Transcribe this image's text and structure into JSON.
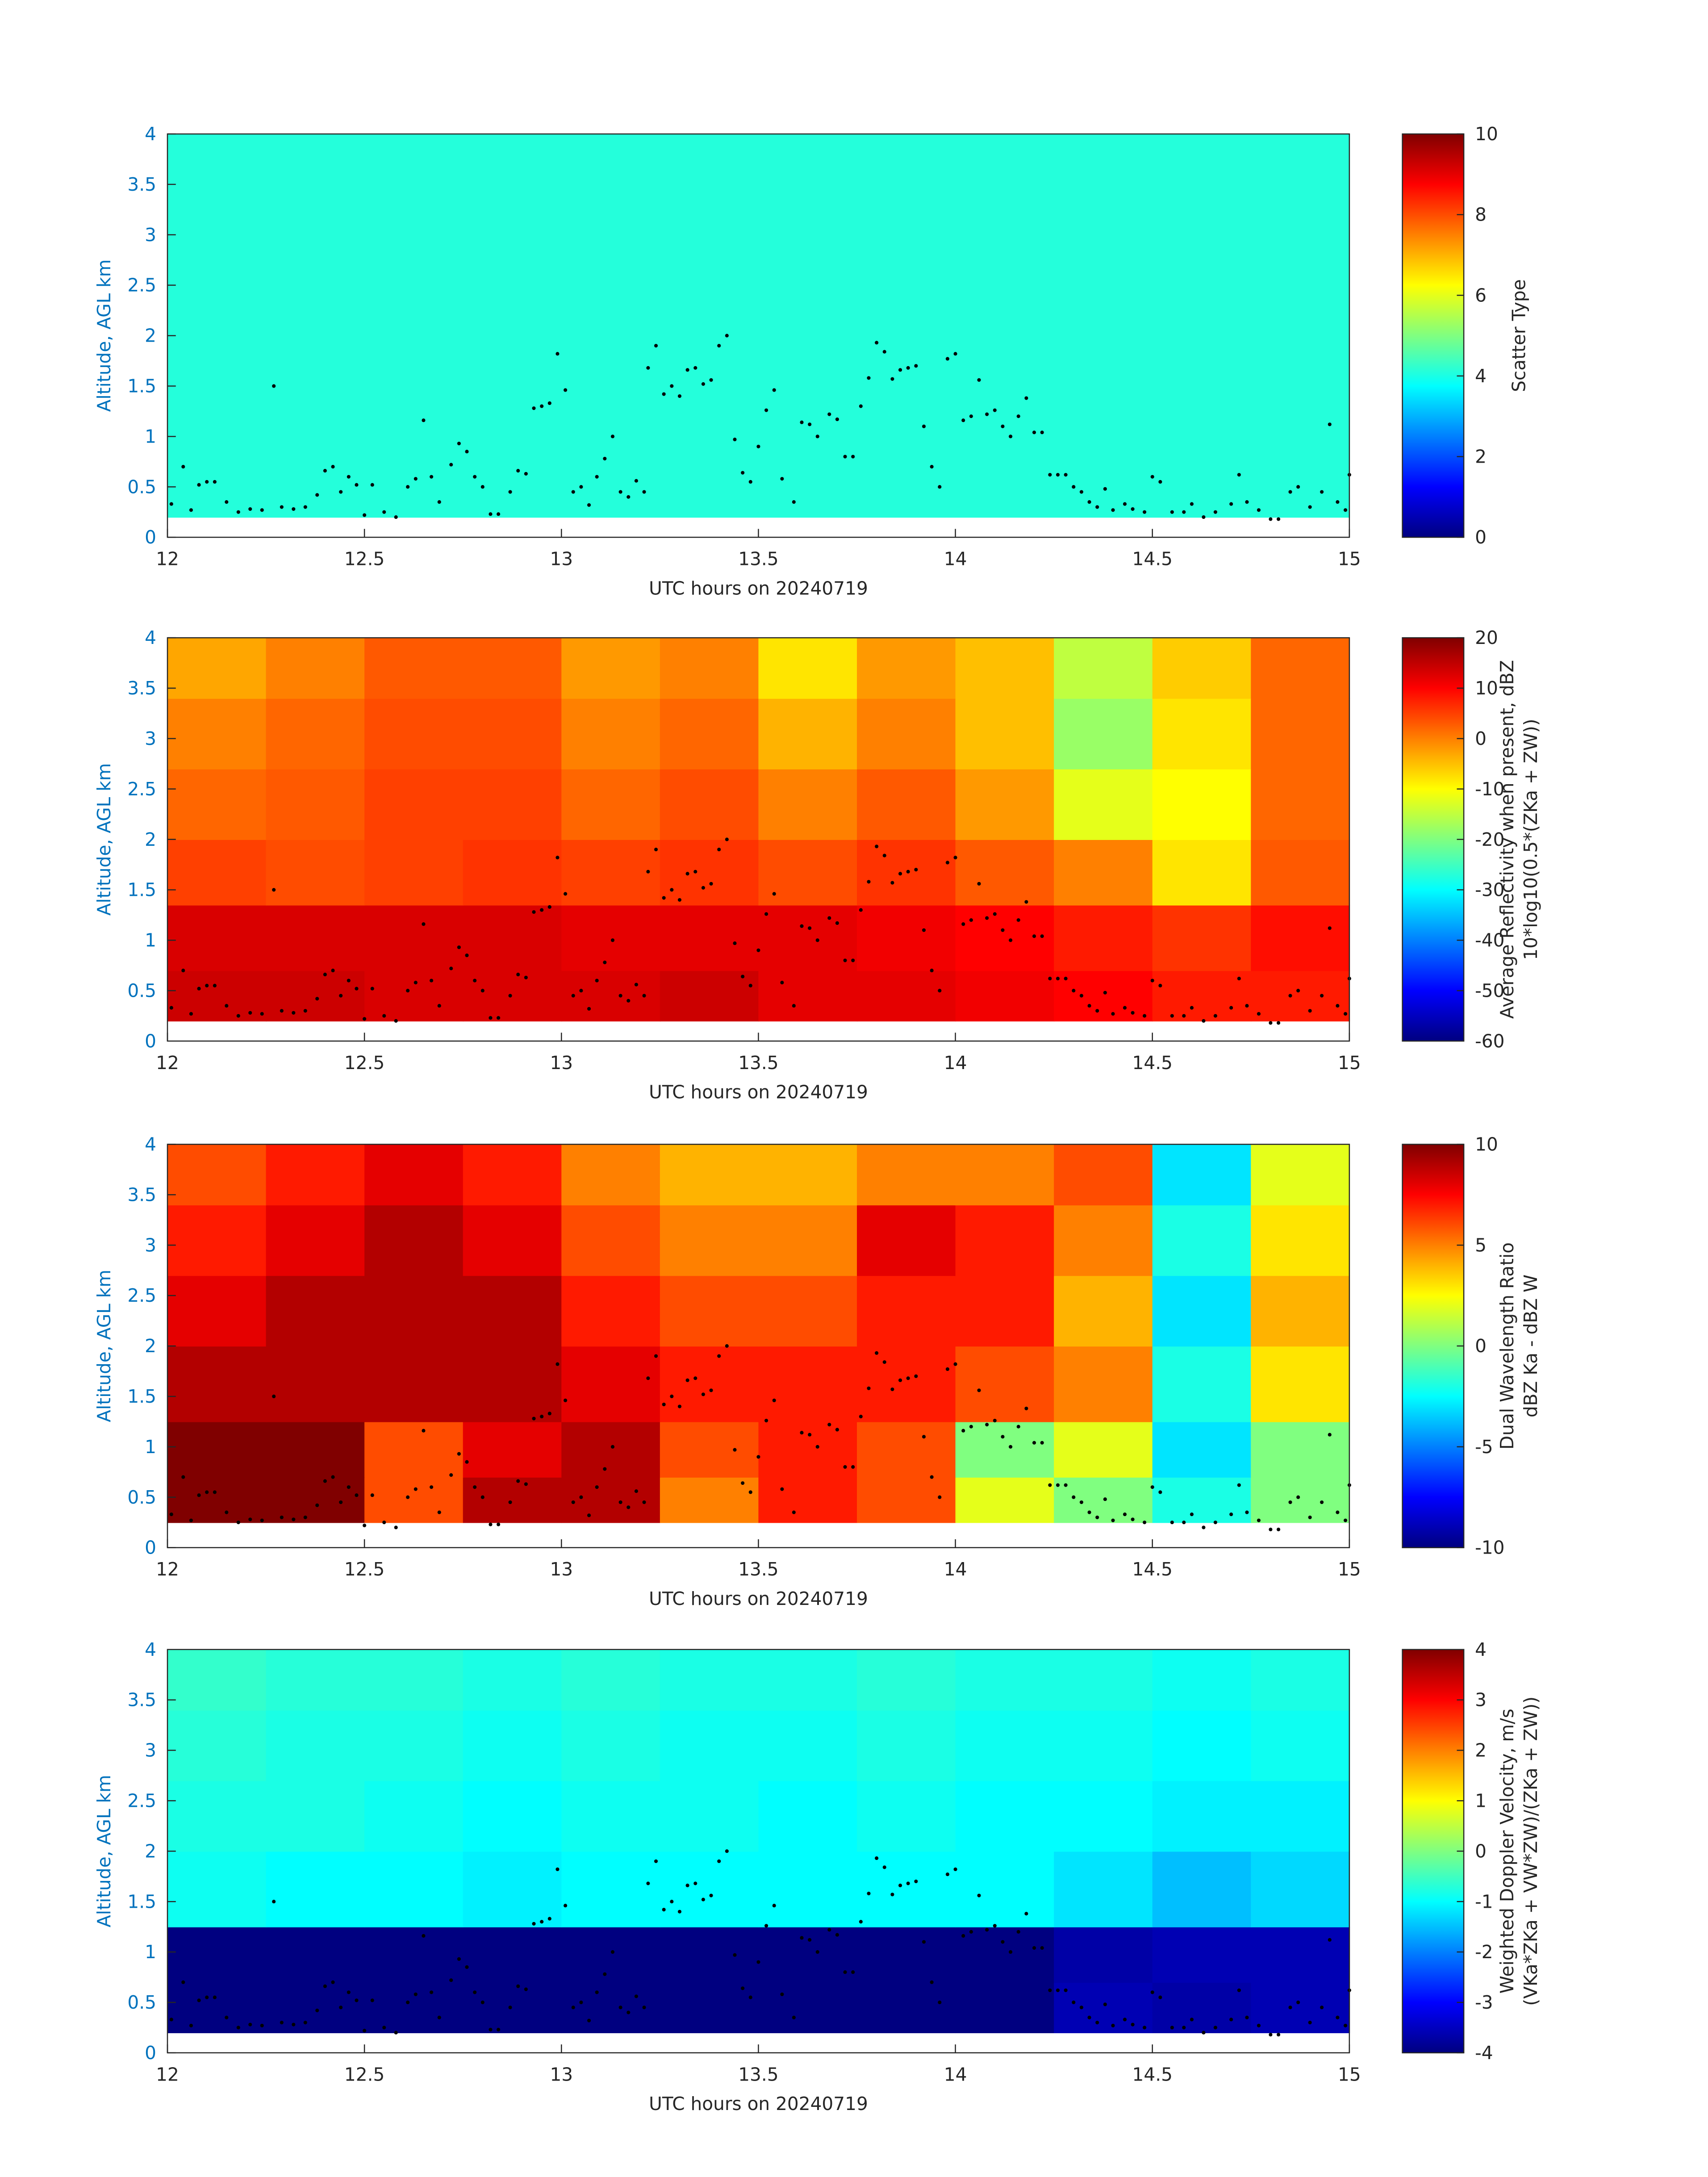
{
  "chart_data": [
    {
      "type": "heatmap",
      "xlabel": "UTC hours on 20240719",
      "ylabel": "Altitude, AGL km",
      "axis_color": "#0072bd",
      "colormap": "jet",
      "xlim": [
        12,
        15
      ],
      "xticks": [
        12,
        12.5,
        13,
        13.5,
        14,
        14.5,
        15
      ],
      "ylim": [
        0,
        4
      ],
      "yticks": [
        0,
        0.5,
        1,
        1.5,
        2,
        2.5,
        3,
        3.5,
        4
      ],
      "xbins": [
        12,
        15
      ],
      "ybins": [
        0.2,
        4
      ],
      "z": [
        [
          4.1
        ]
      ],
      "clim": [
        0,
        10
      ],
      "cticks": [
        0,
        2,
        4,
        6,
        8,
        10
      ],
      "colorbar_label": [
        "Scatter Type"
      ],
      "points": {
        "color": "#000000",
        "x": [
          12.01,
          12.04,
          12.06,
          12.08,
          12.1,
          12.12,
          12.15,
          12.18,
          12.21,
          12.24,
          12.27,
          12.29,
          12.32,
          12.35,
          12.38,
          12.4,
          12.42,
          12.44,
          12.46,
          12.48,
          12.5,
          12.52,
          12.55,
          12.58,
          12.61,
          12.63,
          12.65,
          12.67,
          12.69,
          12.72,
          12.74,
          12.76,
          12.78,
          12.8,
          12.82,
          12.84,
          12.87,
          12.89,
          12.91,
          12.93,
          12.95,
          12.97,
          12.99,
          13.01,
          13.03,
          13.05,
          13.07,
          13.09,
          13.11,
          13.13,
          13.15,
          13.17,
          13.19,
          13.21,
          13.22,
          13.24,
          13.26,
          13.28,
          13.3,
          13.32,
          13.34,
          13.36,
          13.38,
          13.4,
          13.42,
          13.44,
          13.46,
          13.48,
          13.5,
          13.52,
          13.54,
          13.56,
          13.59,
          13.61,
          13.63,
          13.65,
          13.68,
          13.7,
          13.72,
          13.74,
          13.76,
          13.78,
          13.8,
          13.82,
          13.84,
          13.86,
          13.88,
          13.9,
          13.92,
          13.94,
          13.96,
          13.98,
          14,
          14.02,
          14.04,
          14.06,
          14.08,
          14.1,
          14.12,
          14.14,
          14.16,
          14.18,
          14.2,
          14.22,
          14.24,
          14.26,
          14.28,
          14.3,
          14.32,
          14.34,
          14.36,
          14.38,
          14.4,
          14.43,
          14.45,
          14.48,
          14.5,
          14.52,
          14.55,
          14.58,
          14.6,
          14.63,
          14.66,
          14.7,
          14.72,
          14.74,
          14.77,
          14.8,
          14.82,
          14.85,
          14.87,
          14.9,
          14.93,
          14.95,
          14.97,
          14.99,
          15
        ],
        "y": [
          0.33,
          0.7,
          0.27,
          0.52,
          0.55,
          0.55,
          0.35,
          0.25,
          0.28,
          0.27,
          1.5,
          0.3,
          0.28,
          0.3,
          0.42,
          0.66,
          0.7,
          0.45,
          0.6,
          0.52,
          0.22,
          0.52,
          0.25,
          0.2,
          0.5,
          0.58,
          1.16,
          0.6,
          0.35,
          0.72,
          0.93,
          0.85,
          0.6,
          0.5,
          0.23,
          0.23,
          0.45,
          0.66,
          0.63,
          1.28,
          1.3,
          1.33,
          1.82,
          1.46,
          0.45,
          0.5,
          0.32,
          0.6,
          0.78,
          1,
          0.45,
          0.4,
          0.56,
          0.45,
          1.68,
          1.9,
          1.42,
          1.5,
          1.4,
          1.66,
          1.68,
          1.52,
          1.56,
          1.9,
          2,
          0.97,
          0.64,
          0.55,
          0.9,
          1.26,
          1.46,
          0.58,
          0.35,
          1.14,
          1.12,
          1,
          1.22,
          1.17,
          0.8,
          0.8,
          1.3,
          1.58,
          1.93,
          1.84,
          1.57,
          1.66,
          1.68,
          1.7,
          1.1,
          0.7,
          0.5,
          1.77,
          1.82,
          1.16,
          1.2,
          1.56,
          1.22,
          1.26,
          1.1,
          1,
          1.2,
          1.38,
          1.04,
          1.04,
          0.62,
          0.62,
          0.62,
          0.5,
          0.45,
          0.35,
          0.3,
          0.48,
          0.27,
          0.33,
          0.28,
          0.25,
          0.6,
          0.55,
          0.25,
          0.25,
          0.33,
          0.2,
          0.25,
          0.33,
          0.62,
          0.35,
          0.27,
          0.18,
          0.18,
          0.45,
          0.5,
          0.3,
          0.45,
          1.12,
          0.35,
          0.27,
          0.62
        ]
      }
    },
    {
      "type": "heatmap",
      "xlabel": "UTC hours on 20240719",
      "ylabel": "Altitude, AGL km",
      "axis_color": "#0072bd",
      "colormap": "jet",
      "xlim": [
        12,
        15
      ],
      "xticks": [
        12,
        12.5,
        13,
        13.5,
        14,
        14.5,
        15
      ],
      "ylim": [
        0,
        4
      ],
      "yticks": [
        0,
        0.5,
        1,
        1.5,
        2,
        2.5,
        3,
        3.5,
        4
      ],
      "xbins": [
        12,
        12.25,
        12.5,
        12.75,
        13,
        13.25,
        13.5,
        13.75,
        14,
        14.25,
        14.5,
        14.75,
        15
      ],
      "ybins": [
        0.2,
        0.7,
        1.35,
        2,
        2.7,
        3.4,
        4
      ],
      "z": [
        [
          14,
          14,
          13,
          13,
          13,
          14,
          12,
          12,
          11,
          10,
          8,
          8
        ],
        [
          13,
          13,
          13,
          13,
          12,
          12,
          12,
          11,
          10,
          8,
          6,
          9
        ],
        [
          5,
          4,
          5,
          6,
          5,
          6,
          4,
          6,
          3,
          0,
          -8,
          3
        ],
        [
          2,
          3,
          5,
          5,
          2,
          4,
          0,
          3,
          -2,
          -12,
          -10,
          2
        ],
        [
          0,
          2,
          4,
          4,
          0,
          2,
          -4,
          0,
          -5,
          -18,
          -8,
          2
        ],
        [
          -3,
          0,
          3,
          3,
          -2,
          0,
          -8,
          -2,
          -5,
          -15,
          -6,
          2
        ]
      ],
      "clim": [
        -60,
        20
      ],
      "cticks": [
        -60,
        -50,
        -40,
        -30,
        -20,
        -10,
        0,
        10,
        20
      ],
      "colorbar_label": [
        "Average Reflectivity when present, dBZ",
        "10*log10(0.5*(ZKa + ZW))"
      ]
    },
    {
      "type": "heatmap",
      "xlabel": "UTC hours on 20240719",
      "ylabel": "Altitude, AGL km",
      "axis_color": "#0072bd",
      "colormap": "jet",
      "xlim": [
        12,
        15
      ],
      "xticks": [
        12,
        12.5,
        13,
        13.5,
        14,
        14.5,
        15
      ],
      "ylim": [
        0,
        4
      ],
      "yticks": [
        0,
        0.5,
        1,
        1.5,
        2,
        2.5,
        3,
        3.5,
        4
      ],
      "xbins": [
        12,
        12.25,
        12.5,
        12.75,
        13,
        13.25,
        13.5,
        13.75,
        14,
        14.25,
        14.5,
        14.75,
        15
      ],
      "ybins": [
        0.25,
        0.7,
        1.25,
        2,
        2.7,
        3.4,
        4
      ],
      "z": [
        [
          10,
          10,
          6,
          9,
          9,
          5,
          7,
          6,
          2,
          0,
          -2,
          0
        ],
        [
          10,
          10,
          6,
          8,
          9,
          6,
          7,
          6,
          0,
          2,
          -3,
          0
        ],
        [
          9,
          9,
          9,
          9,
          8,
          7,
          7,
          7,
          6,
          5,
          -2,
          3
        ],
        [
          8,
          9,
          9,
          9,
          7,
          6,
          6,
          7,
          7,
          4,
          -3,
          4
        ],
        [
          7,
          8,
          9,
          8,
          6,
          5,
          5,
          8,
          7,
          5,
          -2,
          3
        ],
        [
          6,
          7,
          8,
          7,
          5,
          4,
          4,
          5,
          5,
          6,
          -3,
          2
        ]
      ],
      "clim": [
        -10,
        10
      ],
      "cticks": [
        -10,
        -5,
        0,
        5,
        10
      ],
      "colorbar_label": [
        "Dual Wavelength Ratio",
        "dBZ Ka - dBZ W"
      ]
    },
    {
      "type": "heatmap",
      "xlabel": "UTC hours on 20240719",
      "ylabel": "Altitude, AGL km",
      "axis_color": "#0072bd",
      "colormap": "jet",
      "xlim": [
        12,
        15
      ],
      "xticks": [
        12,
        12.5,
        13,
        13.5,
        14,
        14.5,
        15
      ],
      "ylim": [
        0,
        4
      ],
      "yticks": [
        0,
        0.5,
        1,
        1.5,
        2,
        2.5,
        3,
        3.5,
        4
      ],
      "xbins": [
        12,
        12.25,
        12.5,
        12.75,
        13,
        13.25,
        13.5,
        13.75,
        14,
        14.25,
        14.5,
        14.75,
        15
      ],
      "ybins": [
        0.2,
        0.7,
        1.25,
        2,
        2.7,
        3.4,
        4
      ],
      "z": [
        [
          -4,
          -4,
          -4,
          -4,
          -4,
          -4,
          -4,
          -4,
          -4,
          -3.6,
          -3.7,
          -3.6
        ],
        [
          -4,
          -4,
          -4,
          -4,
          -4,
          -4,
          -4,
          -4,
          -4,
          -3.7,
          -3.6,
          -3.6
        ],
        [
          -0.9,
          -1,
          -1,
          -1.1,
          -1,
          -1,
          -1,
          -1,
          -1,
          -1.2,
          -1.5,
          -1.3
        ],
        [
          -0.8,
          -0.8,
          -0.9,
          -1,
          -0.9,
          -0.9,
          -1,
          -0.9,
          -1,
          -1,
          -1.1,
          -1.1
        ],
        [
          -0.7,
          -0.8,
          -0.8,
          -0.9,
          -0.8,
          -0.9,
          -0.9,
          -0.8,
          -0.9,
          -0.9,
          -1,
          -0.9
        ],
        [
          -0.6,
          -0.7,
          -0.7,
          -0.8,
          -0.7,
          -0.8,
          -0.8,
          -0.7,
          -0.8,
          -0.8,
          -0.9,
          -0.8
        ]
      ],
      "clim": [
        -4,
        4
      ],
      "cticks": [
        -4,
        -3,
        -2,
        -1,
        0,
        1,
        2,
        3,
        4
      ],
      "colorbar_label": [
        "Weighted Doppler Velocity, m/s",
        "(VKa*ZKa + VW*ZW)/(ZKa + ZW))"
      ]
    }
  ]
}
